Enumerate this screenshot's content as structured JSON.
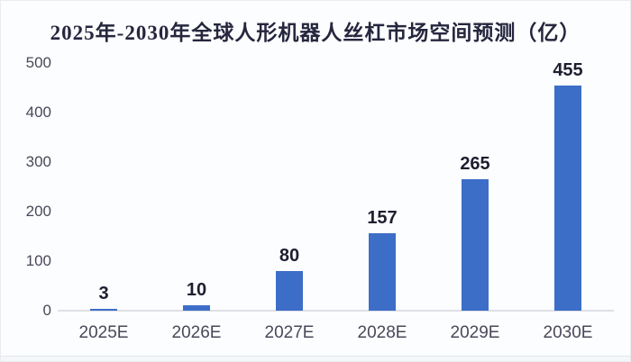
{
  "title": "2025年-2030年全球人形机器人丝杠市场空间预测（亿）",
  "colors": {
    "bar": "#3C6EC8",
    "title_text": "#26263E",
    "axis_text": "#4A4858",
    "value_label_text": "#1E1E30",
    "axis_line": "#DDE0E4",
    "background": "#FCFDFF"
  },
  "chart_data": {
    "type": "bar",
    "title": "2025年-2030年全球人形机器人丝杠市场空间预测（亿）",
    "categories": [
      "2025E",
      "2026E",
      "2027E",
      "2028E",
      "2029E",
      "2030E"
    ],
    "values": [
      3,
      10,
      80,
      157,
      265,
      455
    ],
    "data_labels": [
      "3",
      "10",
      "80",
      "157",
      "265",
      "455"
    ],
    "xlabel": "",
    "ylabel": "",
    "ylim": [
      0,
      500
    ],
    "yticks": [
      0,
      100,
      200,
      300,
      400,
      500
    ],
    "grid": false,
    "legend": "none",
    "series_color": "#3C6EC8"
  }
}
